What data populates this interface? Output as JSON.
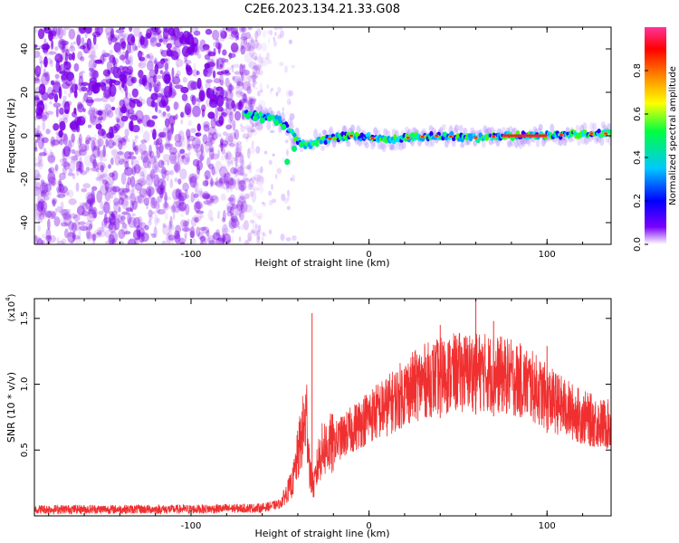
{
  "figure_title": "C2E6.2023.134.21.33.G08",
  "chart_data": [
    {
      "type": "heatmap",
      "title": "",
      "xlabel": "Height of straight line (km)",
      "ylabel": "Frequency (Hz)",
      "xlim": [
        -188,
        136
      ],
      "ylim": [
        -50,
        50
      ],
      "x_ticks": [
        -100,
        0,
        100
      ],
      "y_ticks": [
        -40,
        -20,
        0,
        20,
        40
      ],
      "colorbar": {
        "label": "Normalized spectral amplitude",
        "range": [
          0,
          1
        ],
        "ticks": [
          0.0,
          0.2,
          0.4,
          0.6,
          0.8
        ],
        "colormap": [
          "#ffffff",
          "#7a00ff",
          "#0000ff",
          "#00c8ff",
          "#00ff40",
          "#ffff00",
          "#ff8000",
          "#ff0000",
          "#ff3399"
        ]
      },
      "features": {
        "noise_region_x": [
          -188,
          -62
        ],
        "noise_color": "#7a00e6",
        "signal_track": {
          "x": [
            -70,
            -60,
            -50,
            -45,
            -40,
            -35,
            -30,
            -20,
            -10,
            0,
            10,
            20,
            40,
            60,
            80,
            100,
            120,
            136
          ],
          "freq_hz": [
            10,
            9,
            7,
            3,
            -2,
            -5,
            -3,
            -1,
            0,
            -1,
            -2,
            -1,
            0,
            -1,
            0,
            0,
            1,
            1
          ]
        }
      }
    },
    {
      "type": "line",
      "title": "",
      "xlabel": "Height of straight line (km)",
      "ylabel": "SNR (10 * v/v)",
      "y_multiplier": "(x10",
      "y_multiplier_exp": "4",
      "xlim": [
        -188,
        136
      ],
      "ylim": [
        0,
        16500
      ],
      "x_ticks": [
        -100,
        0,
        100
      ],
      "y_ticks": [
        5000,
        10000,
        15000
      ],
      "y_tick_labels": [
        "0.5",
        "1.0",
        "1.5"
      ],
      "color": "#f03030",
      "envelope": {
        "x": [
          -188,
          -100,
          -60,
          -50,
          -43,
          -38,
          -35,
          -33,
          -31,
          -28,
          -25,
          -20,
          -10,
          0,
          10,
          20,
          30,
          40,
          50,
          60,
          70,
          80,
          90,
          100,
          110,
          120,
          130,
          136
        ],
        "y": [
          500,
          500,
          600,
          900,
          2500,
          6000,
          7500,
          3000,
          2200,
          4500,
          5200,
          5500,
          6500,
          7600,
          8300,
          9400,
          10200,
          10600,
          10900,
          11000,
          10800,
          10500,
          10000,
          9000,
          8200,
          7500,
          7000,
          6900
        ]
      },
      "spikes": [
        {
          "x": -32,
          "y": 15400
        },
        {
          "x": 60,
          "y": 16500
        },
        {
          "x": 40,
          "y": 14500
        },
        {
          "x": 70,
          "y": 14800
        },
        {
          "x": 100,
          "y": 12900
        }
      ]
    }
  ]
}
